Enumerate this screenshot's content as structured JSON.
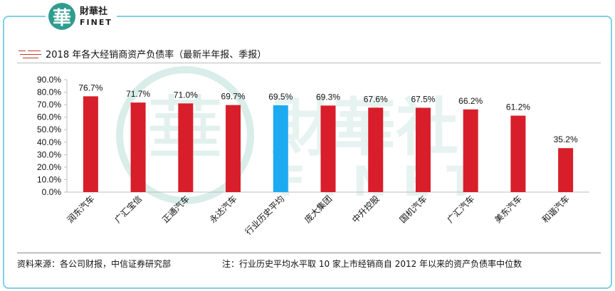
{
  "brand": {
    "seal_char": "華",
    "name_cn": "財華社",
    "name_en": "FINET"
  },
  "chart_data": {
    "type": "bar",
    "title": "2018 年各大经销商资产负债率（最新半年报、季报）",
    "categories": [
      "润东汽车",
      "广汇宝信",
      "正通汽车",
      "永达汽车",
      "行业历史平均",
      "庞大集团",
      "中升控股",
      "国机汽车",
      "广汇汽车",
      "美东汽车",
      "和谐汽车"
    ],
    "values": [
      76.7,
      71.7,
      71.0,
      69.7,
      69.5,
      69.3,
      67.6,
      67.5,
      66.2,
      61.2,
      35.2
    ],
    "value_labels": [
      "76.7%",
      "71.7%",
      "71.0%",
      "69.7%",
      "69.5%",
      "69.3%",
      "67.6%",
      "67.5%",
      "66.2%",
      "61.2%",
      "35.2%"
    ],
    "highlight_index": 4,
    "ylim": [
      0,
      90
    ],
    "ytick_values": [
      0,
      10,
      20,
      30,
      40,
      50,
      60,
      70,
      80,
      90
    ],
    "ytick_labels": [
      "0.0%",
      "10.0%",
      "20.0%",
      "30.0%",
      "40.0%",
      "50.0%",
      "60.0%",
      "70.0%",
      "80.0%",
      "90.0%"
    ],
    "xlabel": "",
    "ylabel": "",
    "grid": false,
    "legend": "none",
    "colors": {
      "bar": "#d81e2a",
      "highlight": "#1eaaf1",
      "axis": "#bfbfbf"
    }
  },
  "footer": {
    "source": "资料来源：各公司财报，中信证券研究部",
    "note": "注：行业历史平均水平取 10 家上市经销商自 2012 年以来的资产负债率中位数"
  },
  "colors": {
    "frame": "#7fd0e3",
    "brand_green": "#2f9c8f",
    "watermark": "#d9ede9"
  }
}
